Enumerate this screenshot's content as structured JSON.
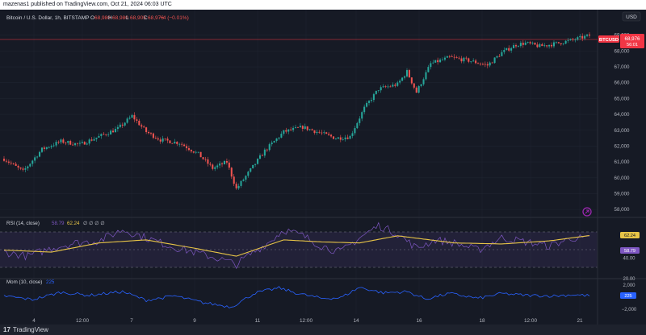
{
  "header": {
    "published_text": "mazenas1 published on TradingView.com, Oct 21, 2024 06:03 UTC"
  },
  "legend": {
    "symbol_text": "Bitcoin / U.S. Dollar, 1h, BITSTAMP",
    "ohlc": [
      {
        "key": "O",
        "value": "68,980"
      },
      {
        "key": "H",
        "value": "68,980"
      },
      {
        "key": "L",
        "value": "68,905"
      },
      {
        "key": "C",
        "value": "68,976"
      }
    ],
    "change": "−4 (−0.01%)"
  },
  "currency_button": "USD",
  "price_tag": {
    "symbol": "BTCUSD",
    "price": "68,976",
    "countdown": "56:01"
  },
  "rsi": {
    "label": "RSI (14, close)",
    "value1": "58.79",
    "value2": "62.24",
    "extra": "∅ ∅ ∅ ∅"
  },
  "mom": {
    "label": "Mom (10, close)",
    "value": "225"
  },
  "footer": {
    "brand": "TradingView"
  },
  "colors": {
    "up": "#26a69a",
    "down": "#ef5350",
    "rsi_line": "#7e57c2",
    "rsi_ma": "#e8c547",
    "mom_line": "#2962ff",
    "price_line": "#f23645",
    "background": "#161a25"
  },
  "icons": [
    "tradingview-logo-icon",
    "alert-icon"
  ],
  "chart_data": [
    {
      "type": "candlestick",
      "title": "Bitcoin / U.S. Dollar, 1h, BITSTAMP",
      "x_tick_labels": [
        "4",
        "12:00",
        "7",
        "9",
        "11",
        "12:00",
        "14",
        "16",
        "18",
        "12:00",
        "21"
      ],
      "y_tick_labels": [
        "69,000",
        "68,000",
        "67,000",
        "66,000",
        "65,000",
        "64,000",
        "63,000",
        "62,000",
        "61,000",
        "60,000",
        "59,000",
        "58,000"
      ],
      "ylim": [
        57600,
        69900
      ],
      "last_price": 68976,
      "close_path": [
        [
          0,
          61200
        ],
        [
          8,
          60400
        ],
        [
          16,
          61800
        ],
        [
          24,
          62300
        ],
        [
          32,
          62100
        ],
        [
          40,
          62600
        ],
        [
          48,
          63100
        ],
        [
          54,
          63900
        ],
        [
          60,
          62900
        ],
        [
          66,
          62400
        ],
        [
          74,
          62200
        ],
        [
          82,
          61500
        ],
        [
          88,
          60600
        ],
        [
          94,
          61000
        ],
        [
          98,
          59300
        ],
        [
          104,
          60500
        ],
        [
          110,
          61700
        ],
        [
          118,
          62900
        ],
        [
          126,
          63200
        ],
        [
          134,
          62800
        ],
        [
          140,
          62500
        ],
        [
          146,
          62600
        ],
        [
          152,
          64400
        ],
        [
          158,
          65600
        ],
        [
          166,
          65900
        ],
        [
          170,
          66700
        ],
        [
          174,
          65400
        ],
        [
          180,
          67200
        ],
        [
          188,
          67600
        ],
        [
          196,
          67400
        ],
        [
          204,
          67100
        ],
        [
          210,
          67900
        ],
        [
          216,
          68400
        ],
        [
          220,
          68500
        ],
        [
          226,
          68300
        ],
        [
          234,
          68500
        ],
        [
          240,
          68700
        ],
        [
          247,
          68980
        ]
      ]
    },
    {
      "type": "line",
      "title": "RSI (14, close)",
      "y_tick_labels": [
        "62.24",
        "58.79",
        "40.00",
        "20.00"
      ],
      "ylim": [
        20,
        80
      ],
      "bands": [
        30,
        50,
        70
      ],
      "series": [
        {
          "values_path": [
            [
              0,
              46
            ],
            [
              10,
              42
            ],
            [
              20,
              50
            ],
            [
              30,
              55
            ],
            [
              40,
              57
            ],
            [
              50,
              68
            ],
            [
              60,
              60
            ],
            [
              70,
              52
            ],
            [
              80,
              46
            ],
            [
              90,
              40
            ],
            [
              98,
              34
            ],
            [
              104,
              44
            ],
            [
              112,
              56
            ],
            [
              118,
              68
            ],
            [
              126,
              62
            ],
            [
              134,
              52
            ],
            [
              142,
              46
            ],
            [
              150,
              60
            ],
            [
              158,
              72
            ],
            [
              166,
              64
            ],
            [
              174,
              50
            ],
            [
              182,
              58
            ],
            [
              190,
              55
            ],
            [
              200,
              48
            ],
            [
              210,
              60
            ],
            [
              220,
              56
            ],
            [
              230,
              52
            ],
            [
              240,
              60
            ],
            [
              247,
              58.79
            ]
          ]
        },
        {
          "values_path": [
            [
              0,
              48
            ],
            [
              20,
              46
            ],
            [
              40,
              55
            ],
            [
              60,
              58
            ],
            [
              80,
              50
            ],
            [
              98,
              42
            ],
            [
              118,
              58
            ],
            [
              134,
              56
            ],
            [
              150,
              55
            ],
            [
              166,
              62
            ],
            [
              190,
              55
            ],
            [
              210,
              54
            ],
            [
              230,
              57
            ],
            [
              247,
              62.24
            ]
          ]
        }
      ]
    },
    {
      "type": "line",
      "title": "Mom (10, close)",
      "y_tick_labels": [
        "2,000",
        "225",
        "−2,000"
      ],
      "ylim": [
        -2500,
        2500
      ],
      "series": [
        {
          "values_path": [
            [
              0,
              200
            ],
            [
              12,
              -400
            ],
            [
              24,
              800
            ],
            [
              36,
              300
            ],
            [
              50,
              900
            ],
            [
              60,
              -500
            ],
            [
              72,
              200
            ],
            [
              84,
              -900
            ],
            [
              96,
              -1600
            ],
            [
              106,
              700
            ],
            [
              116,
              1500
            ],
            [
              124,
              600
            ],
            [
              134,
              -200
            ],
            [
              142,
              -100
            ],
            [
              150,
              1600
            ],
            [
              160,
              700
            ],
            [
              170,
              900
            ],
            [
              178,
              -300
            ],
            [
              188,
              600
            ],
            [
              200,
              -200
            ],
            [
              210,
              600
            ],
            [
              220,
              300
            ],
            [
              232,
              200
            ],
            [
              240,
              400
            ],
            [
              247,
              225
            ]
          ]
        }
      ]
    }
  ]
}
